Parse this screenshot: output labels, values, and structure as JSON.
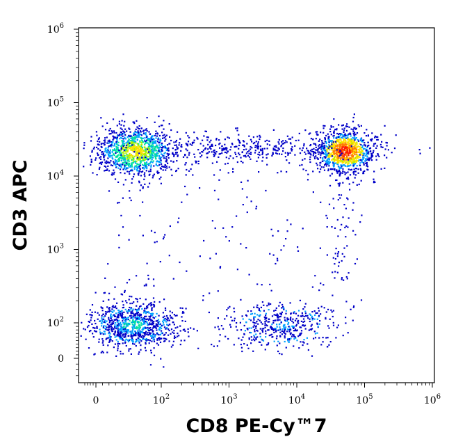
{
  "chart_data": {
    "type": "scatter",
    "subtype": "flow-cytometry-density-dotplot",
    "xlabel": "CD8 PE-Cy™7",
    "ylabel": "CD3 APC",
    "x_scale": "biexponential",
    "y_scale": "biexponential",
    "xlim": [
      -50,
      1000000
    ],
    "ylim": [
      -40,
      1000000
    ],
    "x_ticks": [
      {
        "value": 0,
        "base": "0",
        "exp": ""
      },
      {
        "value": 100,
        "base": "10",
        "exp": "2"
      },
      {
        "value": 1000,
        "base": "10",
        "exp": "3"
      },
      {
        "value": 10000,
        "base": "10",
        "exp": "4"
      },
      {
        "value": 100000,
        "base": "10",
        "exp": "5"
      },
      {
        "value": 1000000,
        "base": "10",
        "exp": "6"
      }
    ],
    "y_ticks": [
      {
        "value": 0,
        "base": "0",
        "exp": ""
      },
      {
        "value": 100,
        "base": "10",
        "exp": "2"
      },
      {
        "value": 1000,
        "base": "10",
        "exp": "3"
      },
      {
        "value": 10000,
        "base": "10",
        "exp": "4"
      },
      {
        "value": 100000,
        "base": "10",
        "exp": "5"
      },
      {
        "value": 1000000,
        "base": "10",
        "exp": "6"
      }
    ],
    "density_colors": [
      "#0000c8",
      "#00a0ff",
      "#00e0a0",
      "#b0f000",
      "#ffe000",
      "#ff7a00",
      "#ff1a00"
    ],
    "populations": [
      {
        "x_center": 60,
        "y_center": 22000,
        "color_peak": "#ffe000"
      },
      {
        "x_center": 50000,
        "y_center": 22000,
        "color_peak": "#ff1a00"
      },
      {
        "x_center": 55,
        "y_center": 95,
        "color_peak": "#00e0a0"
      },
      {
        "x_center": 6000,
        "y_center": 95,
        "color_peak": "#00a0ff"
      },
      {
        "x_center": 1500,
        "y_center": 24000,
        "color_peak": "#0000c8"
      }
    ],
    "grid": false,
    "legend": "none"
  }
}
